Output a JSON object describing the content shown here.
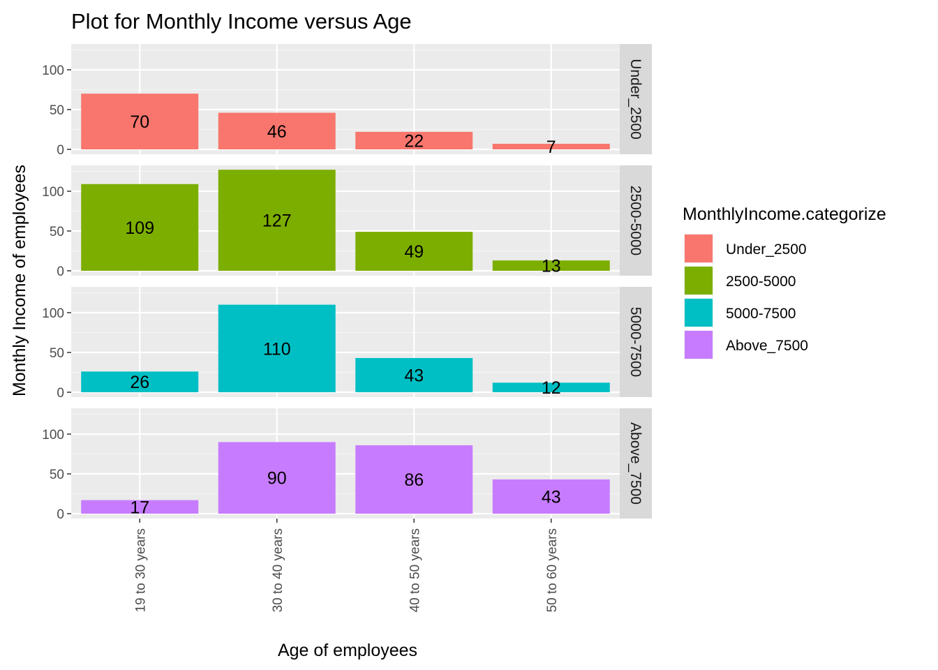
{
  "chart_data": {
    "type": "bar",
    "title": "Plot for Monthly Income versus Age",
    "xlabel": "Age of employees",
    "ylabel": "Monthly Income of employees",
    "categories": [
      "19 to 30 years",
      "30 to 40 years",
      "40 to 50 years",
      "50 to 60 years"
    ],
    "ylim": [
      0,
      130
    ],
    "yticks": [
      0,
      50,
      100
    ],
    "grid": true,
    "legend": {
      "title": "MonthlyIncome.categorize",
      "placement": "right"
    },
    "series": [
      {
        "name": "Under_2500",
        "color": "#F8766D",
        "values": [
          70,
          46,
          22,
          7
        ]
      },
      {
        "name": "2500-5000",
        "color": "#7CAE00",
        "values": [
          109,
          127,
          49,
          13
        ]
      },
      {
        "name": "5000-7500",
        "color": "#00BFC4",
        "values": [
          26,
          110,
          43,
          12
        ]
      },
      {
        "name": "Above_7500",
        "color": "#C77CFF",
        "values": [
          17,
          90,
          86,
          43
        ]
      }
    ]
  }
}
